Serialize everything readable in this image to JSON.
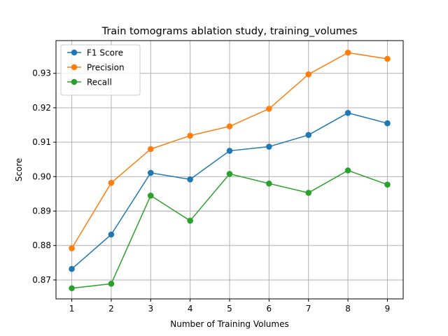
{
  "chart_data": {
    "type": "line",
    "title": "Train tomograms ablation study, training_volumes",
    "xlabel": "Number of Training Volumes",
    "ylabel": "Score",
    "x": [
      1,
      2,
      3,
      4,
      5,
      6,
      7,
      8,
      9
    ],
    "xticks": [
      "1",
      "2",
      "3",
      "4",
      "5",
      "6",
      "7",
      "8",
      "9"
    ],
    "yticks": [
      "0.87",
      "0.88",
      "0.89",
      "0.90",
      "0.91",
      "0.92",
      "0.93"
    ],
    "ytick_values": [
      0.87,
      0.88,
      0.89,
      0.9,
      0.91,
      0.92,
      0.93
    ],
    "xlim": [
      0.6,
      9.4
    ],
    "ylim": [
      0.8645,
      0.9395
    ],
    "grid": true,
    "legend_position": "top-left",
    "series": [
      {
        "name": "F1 Score",
        "color": "#1f77b4",
        "marker": "circle",
        "values": [
          0.8732,
          0.8832,
          0.9011,
          0.8992,
          0.9075,
          0.9087,
          0.9121,
          0.9185,
          0.9155
        ]
      },
      {
        "name": "Precision",
        "color": "#ff7f0e",
        "marker": "circle",
        "values": [
          0.8792,
          0.8982,
          0.908,
          0.9119,
          0.9146,
          0.9197,
          0.9297,
          0.936,
          0.9342
        ]
      },
      {
        "name": "Recall",
        "color": "#2ca02c",
        "marker": "circle",
        "values": [
          0.8676,
          0.8689,
          0.8945,
          0.8872,
          0.9008,
          0.898,
          0.8953,
          0.9018,
          0.8977
        ]
      }
    ]
  }
}
